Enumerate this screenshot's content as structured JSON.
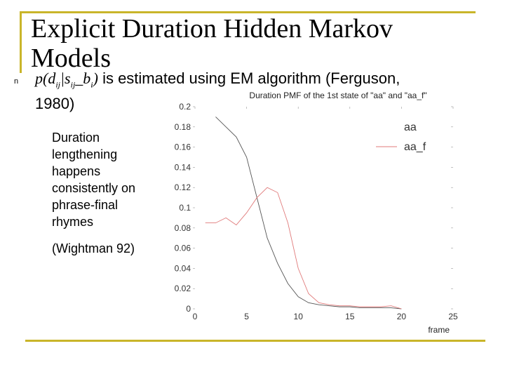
{
  "slide": {
    "title": "Explicit Duration Hidden Markov Models",
    "bullet_symbol": "n",
    "formula_prefix": "p(d",
    "formula_sub1": "ij",
    "formula_mid": "|s",
    "formula_sub2": "ij",
    "formula_mid2": "_b",
    "formula_sub3": "i",
    "formula_suffix": ")",
    "bullet_text_line1": " is estimated using EM algorithm (Ferguson,",
    "bullet_text_line2": "1980)",
    "sub_text": "Duration lengthening happens consistently on phrase-final rhymes",
    "citation": "(Wightman 92)"
  },
  "colors": {
    "frame": "#c9b52a",
    "series_aa_f": "#e07a7a",
    "series_aa": "#555555"
  },
  "chart_data": {
    "type": "line",
    "title": "Duration PMF of the 1st state of \"aa\" and \"aa_f\"",
    "xlabel": "frame",
    "ylabel": "",
    "xlim": [
      0,
      25
    ],
    "ylim": [
      0,
      0.2
    ],
    "x_ticks": [
      "0",
      "5",
      "10",
      "15",
      "20",
      "25"
    ],
    "y_ticks": [
      "0",
      "0.02",
      "0.04",
      "0.06",
      "0.08",
      "0.1",
      "0.12",
      "0.14",
      "0.16",
      "0.18",
      "0.2"
    ],
    "legend_position": "top-right",
    "series": [
      {
        "name": "aa",
        "x": [
          2,
          3,
          4,
          5,
          6,
          7,
          8,
          9,
          10,
          11,
          12,
          13,
          14,
          15,
          16,
          17,
          18,
          19,
          20
        ],
        "y": [
          0.19,
          0.18,
          0.17,
          0.15,
          0.11,
          0.07,
          0.045,
          0.025,
          0.012,
          0.006,
          0.004,
          0.003,
          0.002,
          0.002,
          0.001,
          0.001,
          0.001,
          0.001,
          0.0
        ]
      },
      {
        "name": "aa_f",
        "x": [
          1,
          2,
          3,
          4,
          5,
          6,
          7,
          8,
          9,
          10,
          11,
          12,
          13,
          14,
          15,
          16,
          17,
          18,
          19,
          20
        ],
        "y": [
          0.085,
          0.085,
          0.09,
          0.083,
          0.095,
          0.11,
          0.12,
          0.115,
          0.085,
          0.04,
          0.015,
          0.006,
          0.004,
          0.003,
          0.003,
          0.002,
          0.002,
          0.002,
          0.003,
          0.0
        ]
      }
    ]
  }
}
